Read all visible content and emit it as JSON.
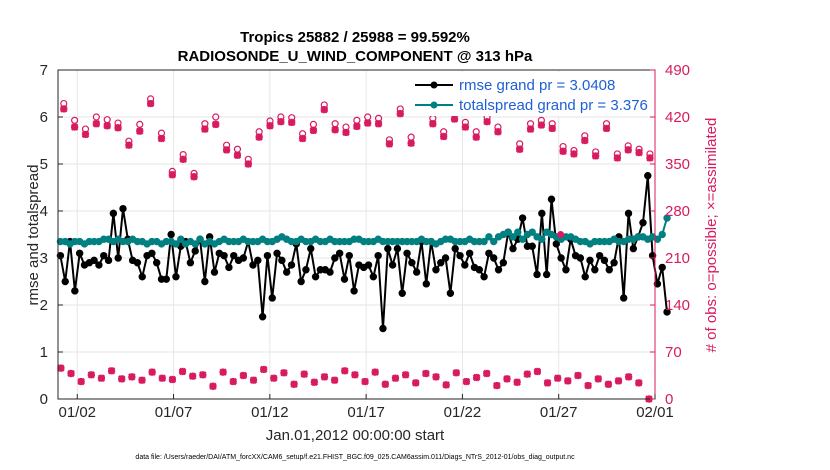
{
  "chart_data": {
    "type": "line",
    "title_line1": "Tropics 25882 / 25988 = 99.592%",
    "title_line2": "RADIOSONDE_U_WIND_COMPONENT @ 313 hPa",
    "xlabel": "Jan.01,2012 00:00:00 start",
    "ylabel_left": "rmse and totalspread",
    "ylabel_right": "# of obs: o=possible; ×=assimilated",
    "footnote": "data file: /Users/raeder/DAI/ATM_forcXX/CAM6_setup/f.e21.FHIST_BGC.f09_025.CAM6assim.011/Diags_NTrS_2012-01/obs_diag_output.nc",
    "xlim": [
      0,
      31
    ],
    "ylim_left": [
      0,
      7
    ],
    "ylim_right": [
      0,
      490
    ],
    "x_ticks": [
      {
        "x": 1,
        "label": "01/02"
      },
      {
        "x": 6,
        "label": "01/07"
      },
      {
        "x": 11,
        "label": "01/12"
      },
      {
        "x": 16,
        "label": "01/17"
      },
      {
        "x": 21,
        "label": "01/22"
      },
      {
        "x": 26,
        "label": "01/27"
      },
      {
        "x": 31,
        "label": "02/01"
      }
    ],
    "y_ticks_left": [
      "0",
      "1",
      "2",
      "3",
      "4",
      "5",
      "6",
      "7"
    ],
    "y_ticks_right": [
      "0",
      "70",
      "140",
      "210",
      "280",
      "350",
      "420",
      "490"
    ],
    "x_step_days": 0.25,
    "x_start": 0.125,
    "series": [
      {
        "name": "rmse",
        "legend": "rmse grand pr = 3.0408",
        "color": "#000000",
        "axis": "left",
        "values": [
          3.05,
          2.5,
          3.35,
          2.3,
          3.1,
          2.85,
          2.9,
          2.95,
          2.85,
          3.05,
          2.95,
          3.95,
          3.0,
          4.05,
          3.4,
          2.95,
          2.9,
          2.6,
          3.05,
          3.1,
          2.9,
          2.55,
          2.55,
          3.5,
          2.6,
          3.25,
          3.35,
          2.9,
          3.15,
          3.4,
          2.5,
          3.45,
          2.7,
          3.1,
          3.05,
          2.8,
          3.05,
          2.95,
          3.0,
          3.35,
          2.85,
          2.95,
          1.75,
          3.05,
          2.15,
          3.1,
          2.95,
          2.7,
          2.85,
          3.3,
          2.5,
          2.75,
          3.2,
          2.6,
          2.75,
          2.75,
          2.7,
          3.0,
          3.1,
          2.55,
          3.05,
          2.3,
          2.85,
          2.8,
          2.85,
          2.6,
          3.05,
          1.5,
          3.2,
          2.85,
          3.2,
          2.25,
          3.1,
          2.9,
          2.7,
          3.35,
          2.45,
          3.35,
          2.75,
          2.9,
          3.0,
          2.25,
          3.2,
          3.05,
          2.85,
          3.1,
          2.8,
          2.75,
          2.6,
          3.1,
          3.0,
          2.75,
          2.9,
          3.55,
          3.2,
          3.4,
          3.85,
          3.25,
          3.25,
          2.65,
          3.95,
          2.65,
          4.25,
          3.3,
          3.0,
          2.75,
          3.4,
          3.05,
          3.0,
          2.6,
          2.95,
          2.75,
          3.05,
          2.95,
          2.75,
          2.9,
          3.45,
          2.15,
          3.95,
          3.2,
          3.45,
          3.75,
          4.75,
          3.05,
          2.45,
          2.8,
          1.85
        ],
        "end_markers": [
          {
            "label": "01/02",
            "index": 5
          }
        ]
      },
      {
        "name": "totalspread",
        "legend": "totalspread grand pr = 3.376",
        "color": "#008080",
        "axis": "left",
        "values": [
          3.35,
          3.35,
          3.3,
          3.35,
          3.35,
          3.3,
          3.35,
          3.35,
          3.35,
          3.4,
          3.4,
          3.35,
          3.4,
          3.35,
          3.35,
          3.4,
          3.35,
          3.35,
          3.3,
          3.35,
          3.35,
          3.3,
          3.35,
          3.35,
          3.3,
          3.4,
          3.3,
          3.35,
          3.3,
          3.4,
          3.3,
          3.35,
          3.3,
          3.35,
          3.4,
          3.35,
          3.35,
          3.35,
          3.4,
          3.35,
          3.35,
          3.35,
          3.4,
          3.35,
          3.35,
          3.4,
          3.45,
          3.4,
          3.35,
          3.35,
          3.4,
          3.35,
          3.35,
          3.4,
          3.35,
          3.35,
          3.4,
          3.35,
          3.35,
          3.35,
          3.35,
          3.4,
          3.4,
          3.35,
          3.35,
          3.35,
          3.4,
          3.35,
          3.35,
          3.35,
          3.35,
          3.35,
          3.35,
          3.35,
          3.35,
          3.4,
          3.35,
          3.35,
          3.3,
          3.35,
          3.4,
          3.4,
          3.35,
          3.35,
          3.35,
          3.4,
          3.35,
          3.35,
          3.35,
          3.45,
          3.35,
          3.45,
          3.5,
          3.55,
          3.45,
          3.55,
          3.4,
          3.5,
          3.55,
          3.45,
          3.4,
          3.55,
          3.5,
          3.45,
          3.4,
          3.45,
          3.45,
          3.4,
          3.35,
          3.35,
          3.3,
          3.35,
          3.35,
          3.35,
          3.35,
          3.4,
          3.35,
          3.35,
          3.4,
          3.4,
          3.45,
          3.45,
          3.4,
          3.45,
          3.4,
          3.5,
          3.85
        ]
      }
    ],
    "obs_assimilated_top": [
      432,
      405,
      394,
      410,
      407,
      404,
      378,
      399,
      440,
      388,
      334,
      357,
      331,
      402,
      409,
      371,
      363,
      350,
      390,
      407,
      413,
      412,
      388,
      400,
      431,
      401,
      397,
      406,
      411,
      410,
      380,
      425,
      381,
      432,
      410,
      391,
      417,
      405,
      390,
      413,
      398,
      431,
      372,
      402,
      408,
      403,
      369,
      365,
      385,
      362,
      403,
      359,
      371,
      367,
      359
    ],
    "obs_assimilated_bottom": [
      46,
      38,
      26,
      36,
      31,
      42,
      30,
      33,
      28,
      40,
      31,
      29,
      41,
      34,
      36,
      19,
      40,
      26,
      35,
      28,
      44,
      31,
      39,
      22,
      37,
      25,
      33,
      28,
      42,
      36,
      26,
      40,
      22,
      31,
      36,
      24,
      38,
      33,
      21,
      39,
      26,
      32,
      38,
      20,
      30,
      25,
      37,
      41,
      24,
      31,
      27,
      35,
      20,
      30,
      22,
      27,
      33,
      24,
      0
    ],
    "obs_possible_top": [
      440,
      415,
      402,
      420,
      416,
      411,
      384,
      409,
      447,
      396,
      339,
      364,
      336,
      410,
      420,
      378,
      372,
      357,
      398,
      414,
      420,
      419,
      395,
      409,
      438,
      410,
      405,
      415,
      420,
      418,
      386,
      432,
      390,
      440,
      418,
      398,
      425,
      412,
      398,
      420,
      405,
      440,
      380,
      410,
      415,
      410,
      376,
      370,
      392,
      368,
      410,
      365,
      377,
      372,
      365
    ],
    "dated_event": {
      "x": 26.1,
      "value": 245
    }
  }
}
